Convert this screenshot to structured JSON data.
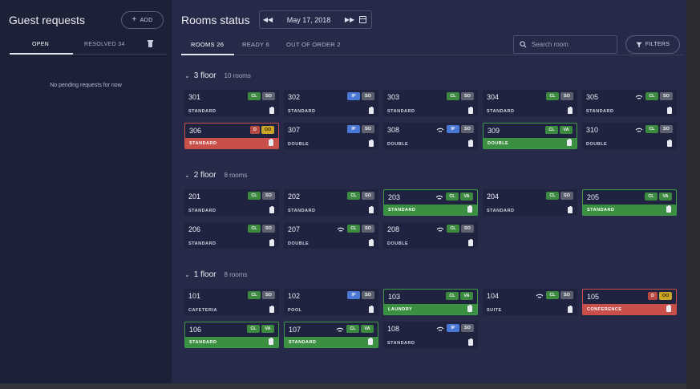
{
  "guest_requests": {
    "title": "Guest requests",
    "add_label": "ADD",
    "tabs": [
      "OPEN",
      "RESOLVED 34"
    ],
    "empty_text": "No pending requests for now"
  },
  "rooms_status": {
    "title": "Rooms status",
    "date": "May 17, 2018",
    "tabs": [
      "ROOMS 26",
      "READY 6",
      "OUT OF ORDER 2"
    ],
    "search_placeholder": "Search room",
    "filters_label": "FILTERS"
  },
  "floors": [
    {
      "name": "3 floor",
      "count": "10 rooms",
      "rooms": [
        {
          "num": "301",
          "type": "STANDARD",
          "chips": [
            "CL",
            "SO"
          ],
          "bell": false,
          "status": "normal"
        },
        {
          "num": "302",
          "type": "STANDARD",
          "chips": [
            "IP",
            "SO"
          ],
          "bell": false,
          "status": "normal"
        },
        {
          "num": "303",
          "type": "STANDARD",
          "chips": [
            "CL",
            "SO"
          ],
          "bell": false,
          "status": "normal"
        },
        {
          "num": "304",
          "type": "STANDARD",
          "chips": [
            "CL",
            "SO"
          ],
          "bell": false,
          "status": "normal"
        },
        {
          "num": "305",
          "type": "STANDARD",
          "chips": [
            "CL",
            "SO"
          ],
          "bell": true,
          "status": "normal"
        },
        {
          "num": "306",
          "type": "STANDARD",
          "chips": [
            "D",
            "OO"
          ],
          "bell": false,
          "status": "red"
        },
        {
          "num": "307",
          "type": "DOUBLE",
          "chips": [
            "IP",
            "SO"
          ],
          "bell": false,
          "status": "normal"
        },
        {
          "num": "308",
          "type": "DOUBLE",
          "chips": [
            "IP",
            "SO"
          ],
          "bell": true,
          "status": "normal"
        },
        {
          "num": "309",
          "type": "DOUBLE",
          "chips": [
            "CL",
            "VA"
          ],
          "bell": false,
          "status": "green"
        },
        {
          "num": "310",
          "type": "DOUBLE",
          "chips": [
            "CL",
            "SO"
          ],
          "bell": true,
          "status": "normal"
        }
      ]
    },
    {
      "name": "2 floor",
      "count": "8 rooms",
      "rooms": [
        {
          "num": "201",
          "type": "STANDARD",
          "chips": [
            "CL",
            "SO"
          ],
          "bell": false,
          "status": "normal"
        },
        {
          "num": "202",
          "type": "STANDARD",
          "chips": [
            "CL",
            "SO"
          ],
          "bell": false,
          "status": "normal"
        },
        {
          "num": "203",
          "type": "STANDARD",
          "chips": [
            "CL",
            "VA"
          ],
          "bell": true,
          "status": "green"
        },
        {
          "num": "204",
          "type": "STANDARD",
          "chips": [
            "CL",
            "SO"
          ],
          "bell": false,
          "status": "normal"
        },
        {
          "num": "205",
          "type": "STANDARD",
          "chips": [
            "CL",
            "VA"
          ],
          "bell": false,
          "status": "green"
        },
        {
          "num": "206",
          "type": "STANDARD",
          "chips": [
            "CL",
            "SO"
          ],
          "bell": false,
          "status": "normal"
        },
        {
          "num": "207",
          "type": "DOUBLE",
          "chips": [
            "CL",
            "SO"
          ],
          "bell": true,
          "status": "normal"
        },
        {
          "num": "208",
          "type": "DOUBLE",
          "chips": [
            "CL",
            "SO"
          ],
          "bell": true,
          "status": "normal"
        }
      ]
    },
    {
      "name": "1 floor",
      "count": "8 rooms",
      "rooms": [
        {
          "num": "101",
          "type": "CAFETERIA",
          "chips": [
            "CL",
            "SO"
          ],
          "bell": false,
          "status": "normal"
        },
        {
          "num": "102",
          "type": "POOL",
          "chips": [
            "IP",
            "SO"
          ],
          "bell": false,
          "status": "normal"
        },
        {
          "num": "103",
          "type": "LAUNDRY",
          "chips": [
            "CL",
            "VA"
          ],
          "bell": false,
          "status": "green"
        },
        {
          "num": "104",
          "type": "SUITE",
          "chips": [
            "CL",
            "SO"
          ],
          "bell": true,
          "status": "normal"
        },
        {
          "num": "105",
          "type": "CONFERENCE",
          "chips": [
            "D",
            "OO"
          ],
          "bell": false,
          "status": "red"
        },
        {
          "num": "106",
          "type": "STANDARD",
          "chips": [
            "CL",
            "VA"
          ],
          "bell": false,
          "status": "green"
        },
        {
          "num": "107",
          "type": "STANDARD",
          "chips": [
            "CL",
            "VA"
          ],
          "bell": true,
          "status": "green"
        },
        {
          "num": "108",
          "type": "STANDARD",
          "chips": [
            "IP",
            "SO"
          ],
          "bell": true,
          "status": "normal"
        }
      ]
    }
  ],
  "colors": {
    "ready_green": "#3a8f41",
    "out_of_order_red": "#c9504a",
    "in_progress_blue": "#4a78d6",
    "panel_bg": "#242845"
  }
}
